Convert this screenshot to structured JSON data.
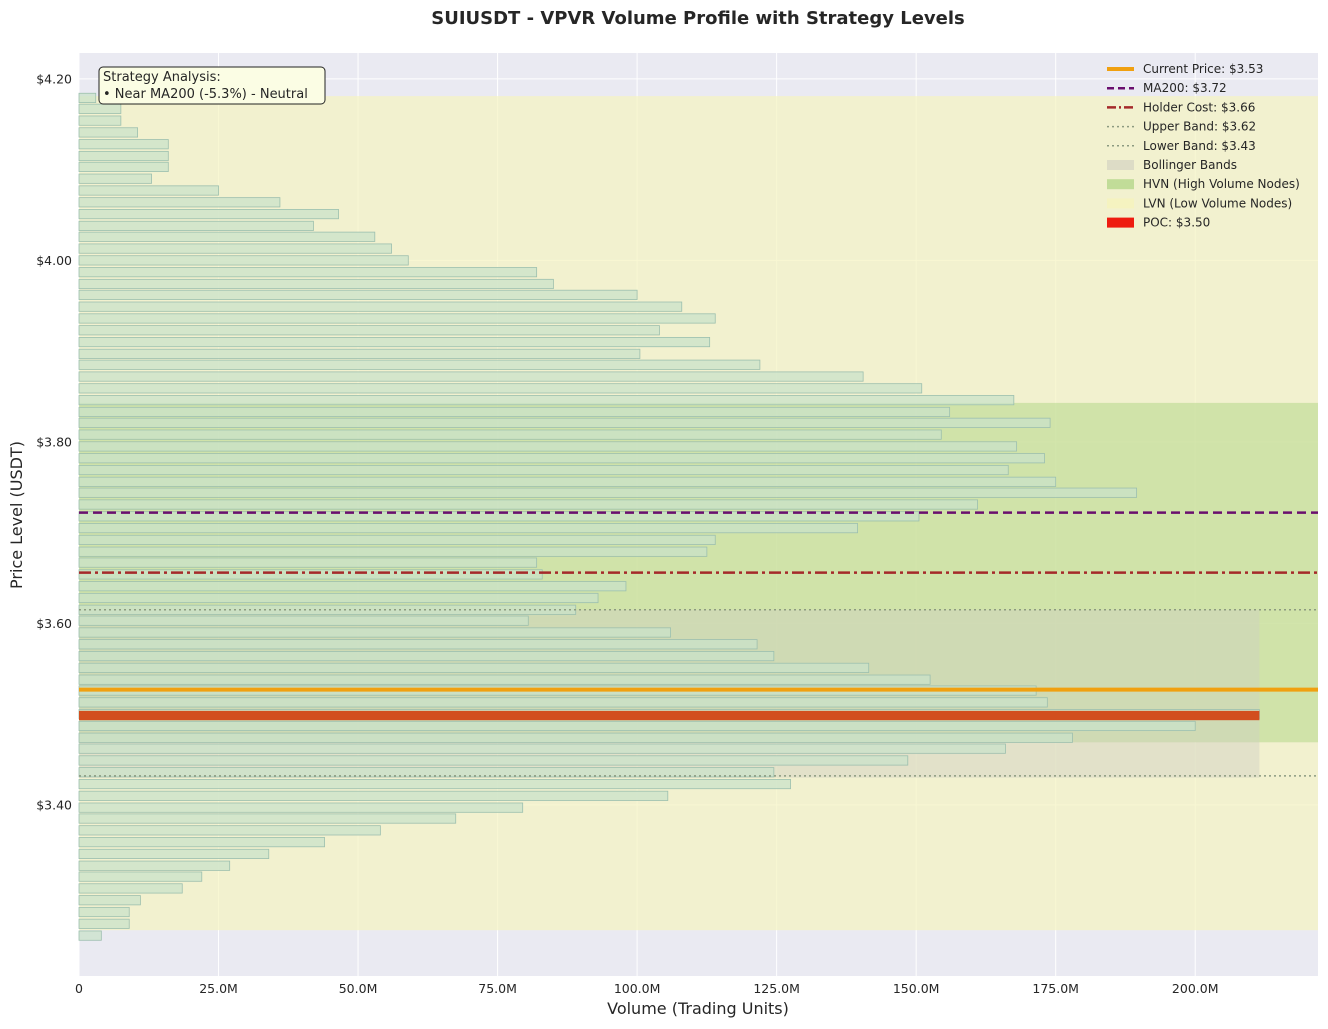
{
  "chart_data": {
    "type": "bar",
    "orientation": "horizontal",
    "title": "SUIUSDT - VPVR Volume Profile with Strategy Levels",
    "xlabel": "Volume (Trading Units)",
    "ylabel": "Price Level (USDT)",
    "xlim": [
      0,
      222
    ],
    "ylim": [
      3.2115,
      4.2285
    ],
    "x_unit": "M",
    "xticks": [
      0,
      25,
      50,
      75,
      100,
      125,
      150,
      175,
      200
    ],
    "xtick_labels": [
      "0",
      "25.0M",
      "50.0M",
      "75.0M",
      "100.0M",
      "125.0M",
      "150.0M",
      "175.0M",
      "200.0M"
    ],
    "yticks": [
      3.4,
      3.6,
      3.8,
      4.0,
      4.2
    ],
    "ytick_labels": [
      "$3.40",
      "$3.60",
      "$3.80",
      "$4.00",
      "$4.20"
    ],
    "grid": true,
    "legend_position": "top-right",
    "bins": [
      {
        "price": 4.179,
        "volume": 3.0
      },
      {
        "price": 4.167,
        "volume": 7.5
      },
      {
        "price": 4.154,
        "volume": 7.5
      },
      {
        "price": 4.141,
        "volume": 10.5
      },
      {
        "price": 4.128,
        "volume": 16.0
      },
      {
        "price": 4.115,
        "volume": 16.0
      },
      {
        "price": 4.103,
        "volume": 16.0
      },
      {
        "price": 4.09,
        "volume": 13.0
      },
      {
        "price": 4.077,
        "volume": 25.0
      },
      {
        "price": 4.064,
        "volume": 36.0
      },
      {
        "price": 4.051,
        "volume": 46.5
      },
      {
        "price": 4.038,
        "volume": 42.0
      },
      {
        "price": 4.026,
        "volume": 53.0
      },
      {
        "price": 4.013,
        "volume": 56.0
      },
      {
        "price": 4.0,
        "volume": 59.0
      },
      {
        "price": 3.987,
        "volume": 82.0
      },
      {
        "price": 3.974,
        "volume": 85.0
      },
      {
        "price": 3.962,
        "volume": 100.0
      },
      {
        "price": 3.949,
        "volume": 108.0
      },
      {
        "price": 3.936,
        "volume": 114.0
      },
      {
        "price": 3.923,
        "volume": 104.0
      },
      {
        "price": 3.91,
        "volume": 113.0
      },
      {
        "price": 3.897,
        "volume": 100.5
      },
      {
        "price": 3.885,
        "volume": 122.0
      },
      {
        "price": 3.872,
        "volume": 140.5
      },
      {
        "price": 3.859,
        "volume": 151.0
      },
      {
        "price": 3.846,
        "volume": 167.5
      },
      {
        "price": 3.833,
        "volume": 156.0
      },
      {
        "price": 3.821,
        "volume": 174.0
      },
      {
        "price": 3.808,
        "volume": 154.5
      },
      {
        "price": 3.795,
        "volume": 168.0
      },
      {
        "price": 3.782,
        "volume": 173.0
      },
      {
        "price": 3.769,
        "volume": 166.5
      },
      {
        "price": 3.756,
        "volume": 175.0
      },
      {
        "price": 3.744,
        "volume": 189.5
      },
      {
        "price": 3.731,
        "volume": 161.0
      },
      {
        "price": 3.718,
        "volume": 150.5
      },
      {
        "price": 3.705,
        "volume": 139.5
      },
      {
        "price": 3.692,
        "volume": 114.0
      },
      {
        "price": 3.679,
        "volume": 112.5
      },
      {
        "price": 3.667,
        "volume": 82.0
      },
      {
        "price": 3.654,
        "volume": 83.0
      },
      {
        "price": 3.641,
        "volume": 98.0
      },
      {
        "price": 3.628,
        "volume": 93.0
      },
      {
        "price": 3.615,
        "volume": 89.0
      },
      {
        "price": 3.603,
        "volume": 80.5
      },
      {
        "price": 3.59,
        "volume": 106.0
      },
      {
        "price": 3.577,
        "volume": 121.5
      },
      {
        "price": 3.564,
        "volume": 124.5
      },
      {
        "price": 3.551,
        "volume": 141.5
      },
      {
        "price": 3.538,
        "volume": 152.5
      },
      {
        "price": 3.526,
        "volume": 171.5
      },
      {
        "price": 3.513,
        "volume": 173.5
      },
      {
        "price": 3.5,
        "volume": 211.5
      },
      {
        "price": 3.487,
        "volume": 200.0
      },
      {
        "price": 3.474,
        "volume": 178.0
      },
      {
        "price": 3.462,
        "volume": 166.0
      },
      {
        "price": 3.449,
        "volume": 148.5
      },
      {
        "price": 3.436,
        "volume": 124.5
      },
      {
        "price": 3.423,
        "volume": 127.5
      },
      {
        "price": 3.41,
        "volume": 105.5
      },
      {
        "price": 3.397,
        "volume": 79.5
      },
      {
        "price": 3.385,
        "volume": 67.5
      },
      {
        "price": 3.372,
        "volume": 54.0
      },
      {
        "price": 3.359,
        "volume": 44.0
      },
      {
        "price": 3.346,
        "volume": 34.0
      },
      {
        "price": 3.333,
        "volume": 27.0
      },
      {
        "price": 3.321,
        "volume": 22.0
      },
      {
        "price": 3.308,
        "volume": 18.5
      },
      {
        "price": 3.295,
        "volume": 11.0
      },
      {
        "price": 3.282,
        "volume": 9.0
      },
      {
        "price": 3.269,
        "volume": 9.0
      },
      {
        "price": 3.256,
        "volume": 4.0
      }
    ],
    "bin_height": 0.01285,
    "regions": {
      "lvn": {
        "from": 3.262,
        "to": 4.181
      },
      "hvn": {
        "from": 3.469,
        "to": 3.843
      },
      "bollinger": {
        "from": 3.43,
        "to": 3.615,
        "volume_extent": 211.5
      }
    },
    "levels": {
      "current_price": 3.527,
      "ma200": 3.722,
      "holder_cost": 3.656,
      "upper_band": 3.615,
      "lower_band": 3.432,
      "poc": 3.4985
    },
    "legend": [
      {
        "key": "current",
        "label": "Current Price: $3.53"
      },
      {
        "key": "ma200",
        "label": "MA200: $3.72"
      },
      {
        "key": "holder",
        "label": "Holder Cost: $3.66"
      },
      {
        "key": "upper",
        "label": "Upper Band: $3.62"
      },
      {
        "key": "lower",
        "label": "Lower Band: $3.43"
      },
      {
        "key": "bollinger",
        "label": "Bollinger Bands"
      },
      {
        "key": "hvn",
        "label": "HVN (High Volume Nodes)"
      },
      {
        "key": "lvn",
        "label": "LVN (Low Volume Nodes)"
      },
      {
        "key": "poc",
        "label": "POC: $3.50"
      }
    ],
    "annotation": {
      "line1": "Strategy Analysis:",
      "line2": "• Near MA200 (-5.3%) - Neutral"
    },
    "colors": {
      "background": "#eaeaf2",
      "bar_fill": "#c9e2c9",
      "bar_edge": "#9cbfae",
      "current_price": "#f0a010",
      "ma200": "#6a0f6e",
      "holder_cost": "#a52a2a",
      "band_line": "#8c9a80",
      "bollinger_fill": "#cfcfc0",
      "hvn_fill": "#b4d78a",
      "lvn_fill": "#f5f3c0",
      "poc": "#d24e1e",
      "annotation_bg": "#fbfde4"
    }
  }
}
